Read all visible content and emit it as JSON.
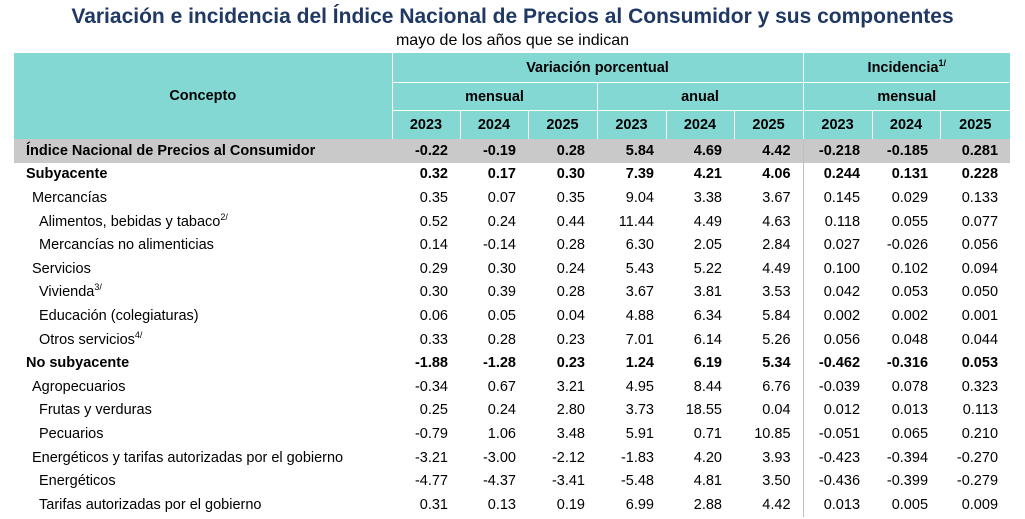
{
  "title": "Variación e incidencia del Índice Nacional de Precios al Consumidor y sus componentes",
  "subtitle": "mayo de los años que se indican",
  "header": {
    "concept": "Concepto",
    "variation": "Variación porcentual",
    "incidence": "Incidencia",
    "incidence_note": "1/",
    "monthly": "mensual",
    "annual": "anual",
    "years": [
      "2023",
      "2024",
      "2025"
    ]
  },
  "rows": [
    {
      "label": "Índice Nacional de Precios al Consumidor",
      "note": "",
      "level": 0,
      "bold": true,
      "total": true,
      "values": [
        "-0.22",
        "-0.19",
        "0.28",
        "5.84",
        "4.69",
        "4.42",
        "-0.218",
        "-0.185",
        "0.281"
      ]
    },
    {
      "label": "Subyacente",
      "note": "",
      "level": 0,
      "bold": true,
      "total": false,
      "values": [
        "0.32",
        "0.17",
        "0.30",
        "7.39",
        "4.21",
        "4.06",
        "0.244",
        "0.131",
        "0.228"
      ]
    },
    {
      "label": "Mercancías",
      "note": "",
      "level": 1,
      "bold": false,
      "total": false,
      "values": [
        "0.35",
        "0.07",
        "0.35",
        "9.04",
        "3.38",
        "3.67",
        "0.145",
        "0.029",
        "0.133"
      ]
    },
    {
      "label": "Alimentos, bebidas y tabaco",
      "note": "2/",
      "level": 2,
      "bold": false,
      "total": false,
      "values": [
        "0.52",
        "0.24",
        "0.44",
        "11.44",
        "4.49",
        "4.63",
        "0.118",
        "0.055",
        "0.077"
      ]
    },
    {
      "label": "Mercancías no alimenticias",
      "note": "",
      "level": 2,
      "bold": false,
      "total": false,
      "values": [
        "0.14",
        "-0.14",
        "0.28",
        "6.30",
        "2.05",
        "2.84",
        "0.027",
        "-0.026",
        "0.056"
      ]
    },
    {
      "label": "Servicios",
      "note": "",
      "level": 1,
      "bold": false,
      "total": false,
      "values": [
        "0.29",
        "0.30",
        "0.24",
        "5.43",
        "5.22",
        "4.49",
        "0.100",
        "0.102",
        "0.094"
      ]
    },
    {
      "label": "Vivienda",
      "note": "3/",
      "level": 2,
      "bold": false,
      "total": false,
      "values": [
        "0.30",
        "0.39",
        "0.28",
        "3.67",
        "3.81",
        "3.53",
        "0.042",
        "0.053",
        "0.050"
      ]
    },
    {
      "label": "Educación (colegiaturas)",
      "note": "",
      "level": 2,
      "bold": false,
      "total": false,
      "values": [
        "0.06",
        "0.05",
        "0.04",
        "4.88",
        "6.34",
        "5.84",
        "0.002",
        "0.002",
        "0.001"
      ]
    },
    {
      "label": "Otros servicios",
      "note": "4/",
      "level": 2,
      "bold": false,
      "total": false,
      "values": [
        "0.33",
        "0.28",
        "0.23",
        "7.01",
        "6.14",
        "5.26",
        "0.056",
        "0.048",
        "0.044"
      ]
    },
    {
      "label": "No subyacente",
      "note": "",
      "level": 0,
      "bold": true,
      "total": false,
      "values": [
        "-1.88",
        "-1.28",
        "0.23",
        "1.24",
        "6.19",
        "5.34",
        "-0.462",
        "-0.316",
        "0.053"
      ]
    },
    {
      "label": "Agropecuarios",
      "note": "",
      "level": 1,
      "bold": false,
      "total": false,
      "values": [
        "-0.34",
        "0.67",
        "3.21",
        "4.95",
        "8.44",
        "6.76",
        "-0.039",
        "0.078",
        "0.323"
      ]
    },
    {
      "label": "Frutas y verduras",
      "note": "",
      "level": 2,
      "bold": false,
      "total": false,
      "values": [
        "0.25",
        "0.24",
        "2.80",
        "3.73",
        "18.55",
        "0.04",
        "0.012",
        "0.013",
        "0.113"
      ]
    },
    {
      "label": "Pecuarios",
      "note": "",
      "level": 2,
      "bold": false,
      "total": false,
      "values": [
        "-0.79",
        "1.06",
        "3.48",
        "5.91",
        "0.71",
        "10.85",
        "-0.051",
        "0.065",
        "0.210"
      ]
    },
    {
      "label": "Energéticos y tarifas autorizadas por el gobierno",
      "note": "",
      "level": 1,
      "bold": false,
      "total": false,
      "values": [
        "-3.21",
        "-3.00",
        "-2.12",
        "-1.83",
        "4.20",
        "3.93",
        "-0.423",
        "-0.394",
        "-0.270"
      ]
    },
    {
      "label": "Energéticos",
      "note": "",
      "level": 2,
      "bold": false,
      "total": false,
      "values": [
        "-4.77",
        "-4.37",
        "-3.41",
        "-5.48",
        "4.81",
        "3.50",
        "-0.436",
        "-0.399",
        "-0.279"
      ]
    },
    {
      "label": "Tarifas autorizadas por el gobierno",
      "note": "",
      "level": 2,
      "bold": false,
      "total": false,
      "values": [
        "0.31",
        "0.13",
        "0.19",
        "6.99",
        "2.88",
        "4.42",
        "0.013",
        "0.005",
        "0.009"
      ]
    }
  ]
}
